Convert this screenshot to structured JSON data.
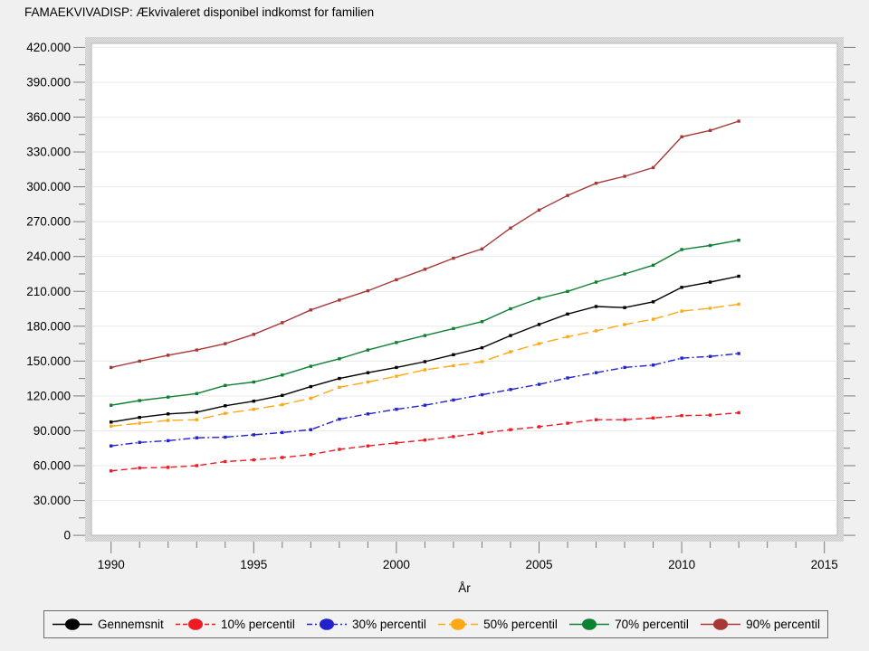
{
  "chart_data": {
    "type": "line",
    "title": "FAMAEKVIVADISP: Ækvivaleret disponibel indkomst for familien",
    "xlabel": "År",
    "ylabel": "",
    "x_range": [
      1989.3,
      2015.5
    ],
    "y_range": [
      0,
      423000
    ],
    "x_ticks_major": [
      1990,
      1995,
      2000,
      2005,
      2010,
      2015
    ],
    "x_tick_minor_step": 1,
    "y_tick_step": 30000,
    "y_tick_minor_step": 15000,
    "y_tick_labels": [
      "0",
      "30.000",
      "60.000",
      "90.000",
      "120.000",
      "150.000",
      "180.000",
      "210.000",
      "240.000",
      "270.000",
      "300.000",
      "330.000",
      "360.000",
      "390.000",
      "420.000"
    ],
    "grid": "horizontal-major",
    "legend_position": "bottom",
    "plot_bg": "#ffffff",
    "page_bg": "#f0f0f0",
    "frame_hatch_colors": [
      "#c9c9c9",
      "#e2e2e2"
    ],
    "gridline_color": "#e9e9e9",
    "tick_color": "#7a7a7a",
    "x": [
      1990,
      1991,
      1992,
      1993,
      1994,
      1995,
      1996,
      1997,
      1998,
      1999,
      2000,
      2001,
      2002,
      2003,
      2004,
      2005,
      2006,
      2007,
      2008,
      2009,
      2010,
      2011,
      2012
    ],
    "series": [
      {
        "name": "Gennemsnit",
        "color": "#000000",
        "dash": "solid",
        "values": [
          97500,
          101500,
          104500,
          106000,
          111500,
          115500,
          120500,
          128000,
          135000,
          140000,
          144500,
          149500,
          155500,
          161500,
          172000,
          181500,
          190500,
          197000,
          196000,
          201000,
          213500,
          218000,
          223000
        ]
      },
      {
        "name": "10% percentil",
        "color": "#ed1c24",
        "dash": "dash",
        "values": [
          55500,
          58000,
          58500,
          60000,
          63500,
          65000,
          67000,
          69500,
          74000,
          77000,
          79500,
          82000,
          85000,
          88000,
          91000,
          93500,
          96500,
          99500,
          99500,
          101000,
          103000,
          103500,
          105500
        ]
      },
      {
        "name": "30% percentil",
        "color": "#2222cc",
        "dash": "dashdot",
        "values": [
          77000,
          80000,
          81500,
          84000,
          84500,
          86500,
          88500,
          91000,
          100000,
          104500,
          108500,
          112000,
          116500,
          121000,
          125500,
          130000,
          135500,
          140000,
          144500,
          146500,
          152500,
          154000,
          156500
        ]
      },
      {
        "name": "50% percentil",
        "color": "#ffa815",
        "dash": "longdash",
        "values": [
          94000,
          96500,
          99000,
          99500,
          105000,
          108500,
          112500,
          118000,
          127500,
          132000,
          137000,
          142500,
          146000,
          149500,
          158000,
          165000,
          171000,
          176000,
          181500,
          186000,
          193000,
          195500,
          199000
        ]
      },
      {
        "name": "70% percentil",
        "color": "#0e8032",
        "dash": "solid",
        "values": [
          112000,
          116000,
          119000,
          122000,
          129000,
          132000,
          138000,
          145500,
          152000,
          159500,
          166000,
          172000,
          178000,
          184000,
          195000,
          204000,
          210000,
          218000,
          225000,
          232500,
          246000,
          249500,
          254000
        ]
      },
      {
        "name": "90% percentil",
        "color": "#a83838",
        "dash": "solid",
        "values": [
          144500,
          150000,
          155000,
          159500,
          165000,
          173000,
          183000,
          194000,
          202500,
          210500,
          220000,
          229000,
          238500,
          246500,
          264500,
          280000,
          292500,
          303000,
          309000,
          316500,
          343000,
          348500,
          356500
        ]
      }
    ]
  }
}
